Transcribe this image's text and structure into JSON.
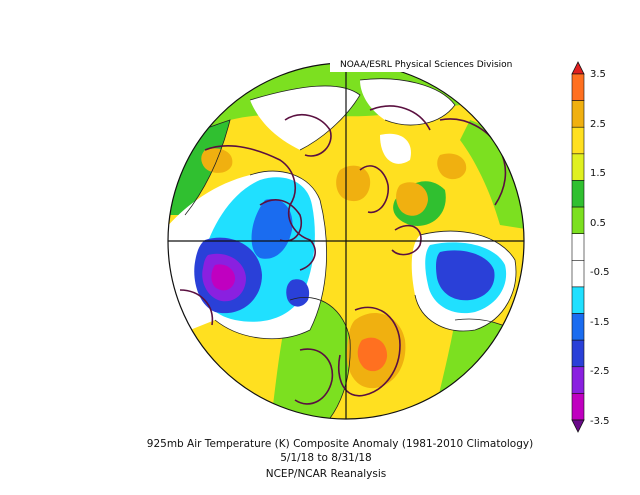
{
  "credit": "NOAA/ESRL Physical Sciences Division",
  "caption": {
    "line1": "925mb Air Temperature (K) Composite Anomaly (1981-2010 Climatology)",
    "line2": "5/1/18  to 8/31/18",
    "line3": "NCEP/NCAR Reanalysis"
  },
  "colorbar": {
    "ticks": [
      "3.5",
      "2.5",
      "1.5",
      "0.5",
      "-0.5",
      "-1.5",
      "-2.5",
      "-3.5"
    ],
    "colors": [
      "#6a0a8a",
      "#c000c0",
      "#8a20e0",
      "#2a40d8",
      "#1a6cf0",
      "#20e0ff",
      "#ffffff",
      "#ffffff",
      "#7ce020",
      "#30c030",
      "#e0f020",
      "#ffe020",
      "#f0b010",
      "#ff7020",
      "#e02020"
    ]
  },
  "anomaly_colors": {
    "strong_cold": "#9a20d8",
    "cold": "#2a40d8",
    "cool": "#20e0ff",
    "neutral": "#ffffff",
    "warm_light": "#7ce020",
    "warm": "#ffe020",
    "hot": "#f0b010",
    "very_hot": "#ff7020"
  }
}
